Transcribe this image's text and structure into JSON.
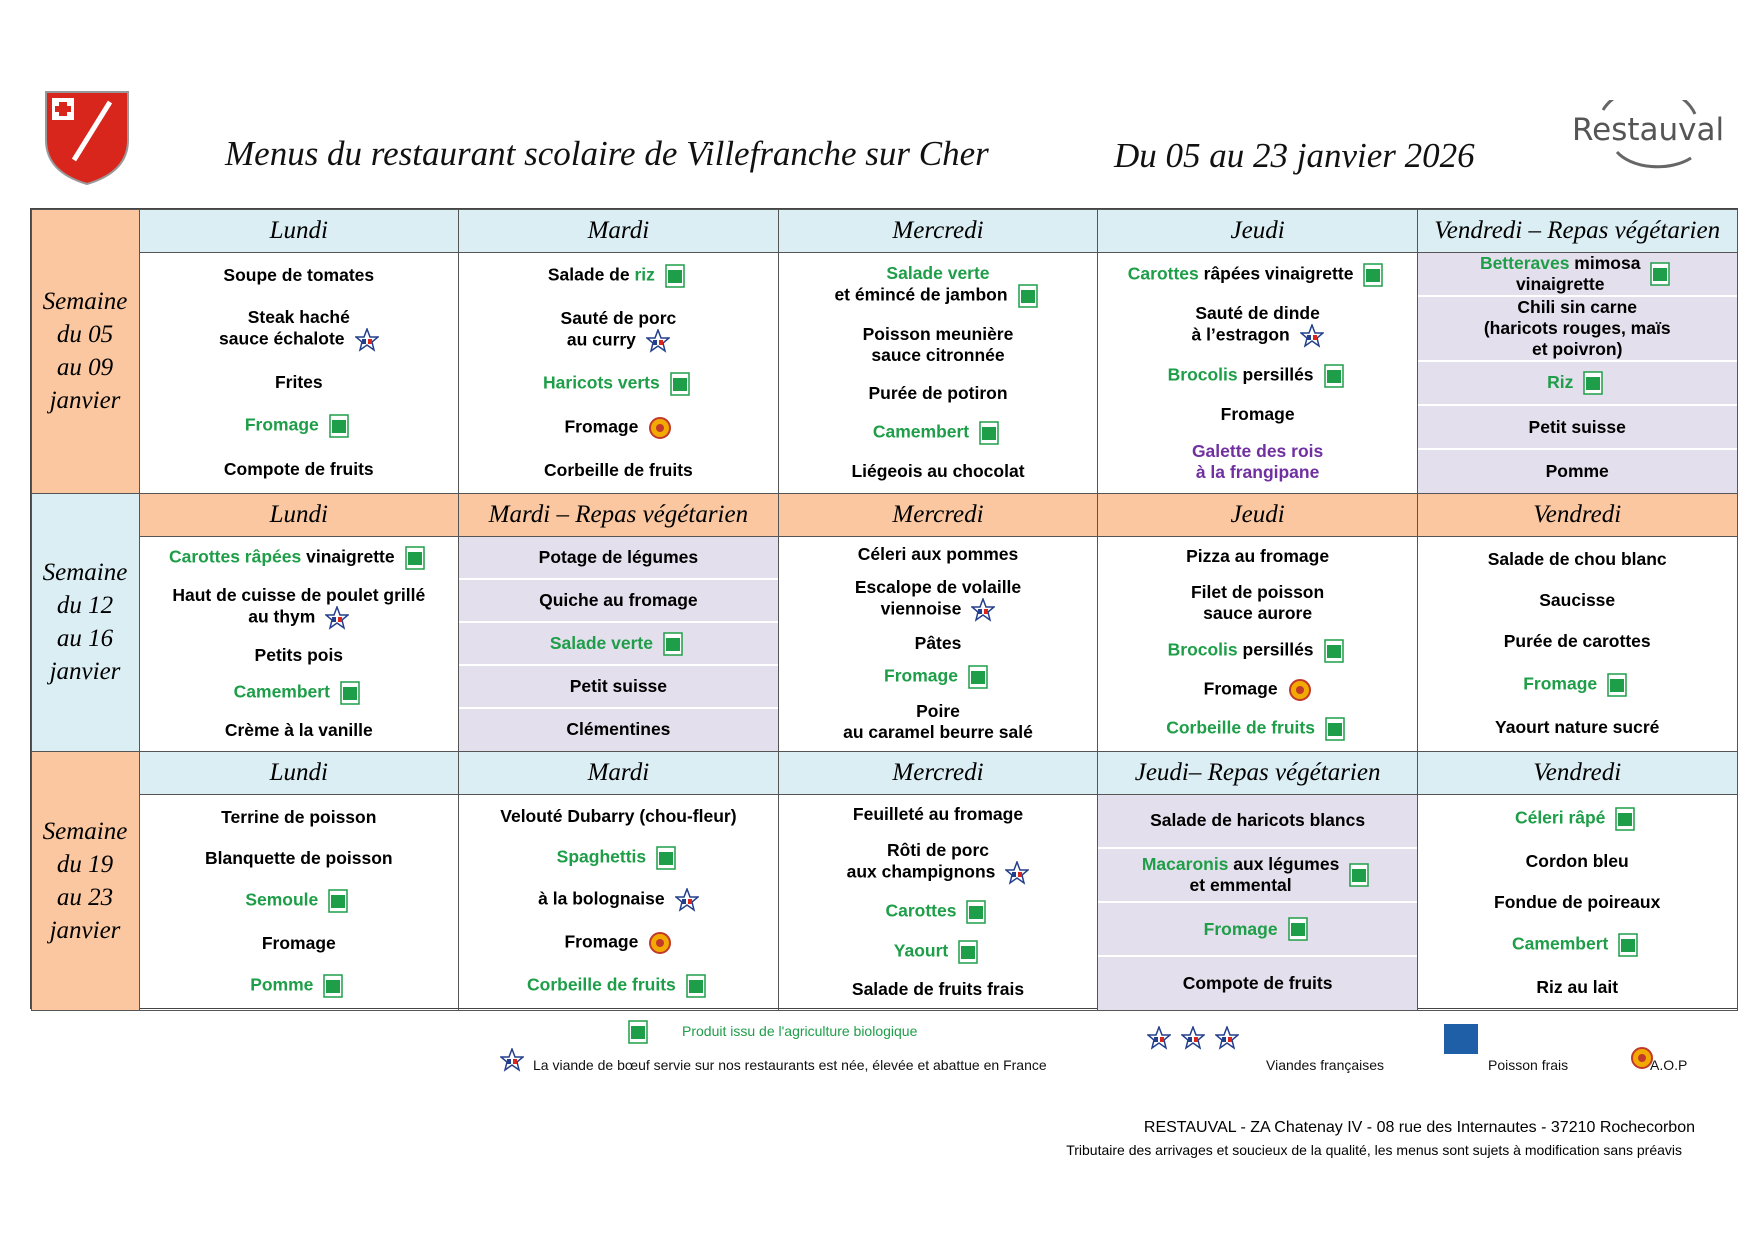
{
  "header": {
    "title": "Menus du restaurant scolaire de Villefranche sur Cher",
    "period": "Du 05 au 23 janvier 2026",
    "brand": "Restauval"
  },
  "weeks": [
    {
      "label": "Semaine\ndu 05\nau 09\njanvier",
      "label_color": "#fac7a0",
      "header_color": "#daeef3",
      "days": [
        {
          "name": "Lundi",
          "items": [
            {
              "text": "Soupe de tomates"
            },
            {
              "text": "Steak haché\nsauce échalote",
              "badge": "VF"
            },
            {
              "text": "Frites"
            },
            {
              "text": "Fromage",
              "color": "#1e9e48",
              "badge": "AB"
            },
            {
              "text": "Compote de fruits"
            }
          ]
        },
        {
          "name": "Mardi",
          "items": [
            {
              "segments": [
                {
                  "text": "Salade de "
                },
                {
                  "text": "riz",
                  "color": "#1e9e48"
                }
              ],
              "badge": "AB"
            },
            {
              "text": "Sauté de porc\nau curry",
              "badge": "VF"
            },
            {
              "text": "Haricots verts",
              "color": "#1e9e48",
              "badge": "AB"
            },
            {
              "text": "Fromage",
              "badge": "A.O.P"
            },
            {
              "text": "Corbeille de fruits"
            }
          ]
        },
        {
          "name": "Mercredi",
          "items": [
            {
              "segments": [
                {
                  "text": "Salade verte",
                  "color": "#1e9e48"
                },
                {
                  "text": "\net émincé de jambon"
                }
              ],
              "badge": "AB"
            },
            {
              "text": "Poisson meunière\nsauce citronnée"
            },
            {
              "text": "Purée de potiron"
            },
            {
              "text": "Camembert",
              "color": "#1e9e48",
              "badge": "AB"
            },
            {
              "text": "Liégeois au chocolat"
            }
          ]
        },
        {
          "name": "Jeudi",
          "items": [
            {
              "segments": [
                {
                  "text": "Carottes",
                  "color": "#1e9e48"
                },
                {
                  "text": " râpées vinaigrette"
                }
              ],
              "badge": "AB"
            },
            {
              "text": "Sauté de dinde\nà l’estragon",
              "badge": "VF"
            },
            {
              "segments": [
                {
                  "text": "Brocolis",
                  "color": "#1e9e48"
                },
                {
                  "text": " persillés"
                }
              ],
              "badge": "AB"
            },
            {
              "text": "Fromage"
            },
            {
              "text": "Galette des rois\nà la frangipane",
              "color": "#7030a0"
            }
          ]
        },
        {
          "name": "Vendredi – Repas végétarien",
          "vegetarian": true,
          "items": [
            {
              "segments": [
                {
                  "text": "Betteraves",
                  "color": "#1e9e48"
                },
                {
                  "text": " mimosa\nvinaigrette"
                }
              ],
              "badge": "AB"
            },
            {
              "text": "Chili sin carne\n(haricots rouges, maïs\net poivron)"
            },
            {
              "text": "Riz",
              "color": "#1e9e48",
              "badge": "AB"
            },
            {
              "text": "Petit suisse"
            },
            {
              "text": "Pomme"
            }
          ]
        }
      ]
    },
    {
      "label": "Semaine\ndu 12\nau 16\njanvier",
      "label_color": "#daeef3",
      "header_color": "#fac7a0",
      "days": [
        {
          "name": "Lundi",
          "items": [
            {
              "segments": [
                {
                  "text": "Carottes râpées",
                  "color": "#1e9e48"
                },
                {
                  "text": " vinaigrette"
                }
              ],
              "badge": "AB"
            },
            {
              "text": "Haut de cuisse de poulet grillé\nau thym",
              "badge": "VF"
            },
            {
              "text": "Petits pois"
            },
            {
              "text": "Camembert",
              "color": "#1e9e48",
              "badge": "AB"
            },
            {
              "text": "Crème à la vanille"
            }
          ]
        },
        {
          "name": "Mardi – Repas végétarien",
          "vegetarian": true,
          "items": [
            {
              "text": "Potage de légumes"
            },
            {
              "text": "Quiche au fromage"
            },
            {
              "text": "Salade verte",
              "color": "#1e9e48",
              "badge": "AB"
            },
            {
              "text": "Petit suisse"
            },
            {
              "text": "Clémentines"
            }
          ]
        },
        {
          "name": "Mercredi",
          "items": [
            {
              "text": "Céleri aux pommes"
            },
            {
              "text": "Escalope de volaille\nviennoise",
              "badge": "VF"
            },
            {
              "text": "Pâtes"
            },
            {
              "text": "Fromage",
              "color": "#1e9e48",
              "badge": "AB"
            },
            {
              "text": "Poire\nau caramel beurre salé"
            }
          ]
        },
        {
          "name": "Jeudi",
          "items": [
            {
              "text": "Pizza au fromage"
            },
            {
              "text": "Filet de poisson\nsauce aurore"
            },
            {
              "segments": [
                {
                  "text": "Brocolis",
                  "color": "#1e9e48"
                },
                {
                  "text": " persillés"
                }
              ],
              "badge": "AB"
            },
            {
              "text": "Fromage",
              "badge": "A.O.P"
            },
            {
              "text": "Corbeille de fruits",
              "color": "#1e9e48",
              "badge": "AB"
            }
          ]
        },
        {
          "name": "Vendredi",
          "items": [
            {
              "text": "Salade de chou blanc"
            },
            {
              "text": "Saucisse"
            },
            {
              "text": "Purée de carottes"
            },
            {
              "text": "Fromage",
              "color": "#1e9e48",
              "badge": "AB"
            },
            {
              "text": "Yaourt nature sucré"
            }
          ]
        }
      ]
    },
    {
      "label": "Semaine\ndu 19\nau 23\njanvier",
      "label_color": "#fac7a0",
      "header_color": "#daeef3",
      "days": [
        {
          "name": "Lundi",
          "items": [
            {
              "text": "Terrine de poisson"
            },
            {
              "text": "Blanquette de poisson"
            },
            {
              "text": "Semoule",
              "color": "#1e9e48",
              "badge": "AB"
            },
            {
              "text": "Fromage"
            },
            {
              "text": "Pomme",
              "color": "#1e9e48",
              "badge": "AB"
            }
          ]
        },
        {
          "name": "Mardi",
          "items": [
            {
              "text": "Velouté Dubarry (chou-fleur)"
            },
            {
              "text": "Spaghettis",
              "color": "#1e9e48",
              "badge": "AB"
            },
            {
              "text": "à la bolognaise",
              "badge": "VF"
            },
            {
              "text": "Fromage",
              "badge": "A.O.P"
            },
            {
              "text": "Corbeille de fruits",
              "color": "#1e9e48",
              "badge": "AB"
            }
          ]
        },
        {
          "name": "Mercredi",
          "items": [
            {
              "text": "Feuilleté au fromage"
            },
            {
              "text": "Rôti de porc\naux champignons",
              "badge": "VF"
            },
            {
              "text": "Carottes",
              "color": "#1e9e48",
              "badge": "AB"
            },
            {
              "text": "Yaourt",
              "color": "#1e9e48",
              "badge": "AB"
            },
            {
              "text": "Salade de fruits frais"
            }
          ]
        },
        {
          "name": "Jeudi– Repas végétarien",
          "vegetarian": true,
          "items": [
            {
              "text": "Salade de haricots blancs"
            },
            {
              "segments": [
                {
                  "text": "Macaronis",
                  "color": "#1e9e48"
                },
                {
                  "text": " aux légumes\net emmental"
                }
              ],
              "badge": "AB"
            },
            {
              "text": "Fromage",
              "color": "#1e9e48",
              "badge": "AB"
            },
            {
              "text": "Compote de fruits"
            }
          ]
        },
        {
          "name": "Vendredi",
          "items": [
            {
              "text": "Céleri râpé",
              "color": "#1e9e48",
              "badge": "AB"
            },
            {
              "text": "Cordon bleu"
            },
            {
              "text": "Fondue de poireaux"
            },
            {
              "text": "Camembert",
              "color": "#1e9e48",
              "badge": "AB"
            },
            {
              "text": "Riz au lait"
            }
          ]
        }
      ]
    }
  ],
  "legend": {
    "bio": "Produit issu de l'agriculture biologique",
    "beef": "La viande de bœuf servie sur nos restaurants est née, élevée et abattue en France",
    "french_meat": "Viandes françaises",
    "fish": "Poisson frais",
    "aop": "A.O.P"
  },
  "footer": {
    "address": "RESTAUVAL - ZA Chatenay IV - 08 rue des Internautes - 37210 Rochecorbon",
    "note": "Tributaire des arrivages et soucieux de la qualité, les menus sont sujets à modification sans préavis"
  }
}
